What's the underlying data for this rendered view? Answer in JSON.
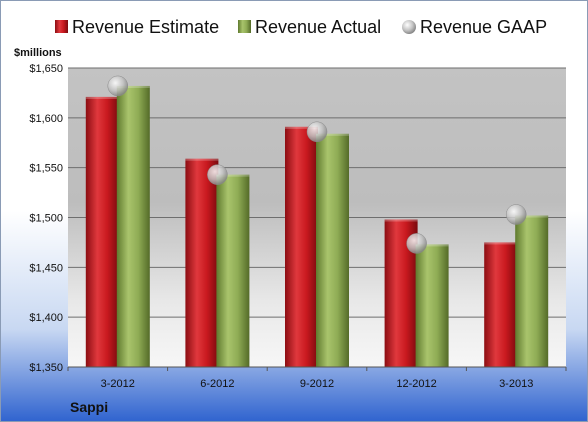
{
  "chart_data": {
    "type": "bar",
    "ylabel": "$millions",
    "company": "Sappi",
    "categories": [
      "3-2012",
      "6-2012",
      "9-2012",
      "12-2012",
      "3-2013"
    ],
    "series": [
      {
        "name": "Revenue Estimate",
        "values": [
          1621,
          1559,
          1591,
          1498,
          1475
        ],
        "color": "#cc1f26"
      },
      {
        "name": "Revenue Actual",
        "values": [
          1632,
          1543,
          1584,
          1473,
          1502
        ],
        "color": "#8fac55"
      },
      {
        "name": "Revenue GAAP",
        "values": [
          1632,
          1543,
          1586,
          1474,
          1503
        ],
        "color": "#c0c0c0",
        "marker": "circle"
      }
    ],
    "ylim": [
      1350,
      1650
    ],
    "yticks": [
      1350,
      1400,
      1450,
      1500,
      1550,
      1600,
      1650
    ],
    "ytick_labels": [
      "$1,350",
      "$1,400",
      "$1,450",
      "$1,500",
      "$1,550",
      "$1,600",
      "$1,650"
    ],
    "grid": true,
    "legend": "top"
  }
}
